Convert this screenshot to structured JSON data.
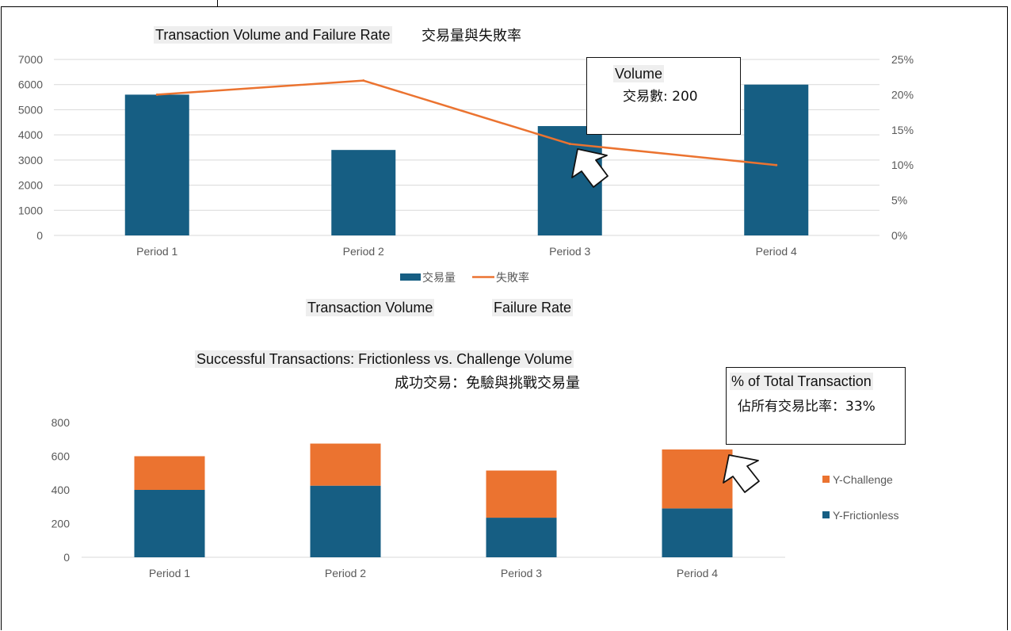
{
  "top_chart": {
    "title_en": "Transaction Volume and Failure Rate",
    "title_zh": "交易量與失敗率",
    "legend_bar_label": "Transaction Volume",
    "legend_line_label": "Failure Rate",
    "callout": {
      "title": "Volume",
      "line": "交易數: 200"
    }
  },
  "bottom_chart": {
    "title_en": "Successful Transactions: Frictionless vs. Challenge Volume",
    "title_zh": "成功交易：免驗與挑戰交易量",
    "callout": {
      "title": "% of Total Transaction",
      "line": "佔所有交易比率：33%"
    }
  },
  "colors": {
    "blue": "#165E83",
    "orange": "#EB7330",
    "grid": "#d9d9d9"
  },
  "chart_data": [
    {
      "type": "bar",
      "categories": [
        "Period 1",
        "Period 2",
        "Period 3",
        "Period 4"
      ],
      "series": [
        {
          "name": "交易量",
          "type": "bar",
          "axis": "left",
          "values": [
            5600,
            3400,
            4350,
            6000
          ]
        },
        {
          "name": "失敗率",
          "type": "line",
          "axis": "right",
          "values": [
            20,
            22,
            13,
            10
          ]
        }
      ],
      "ylim": [
        0,
        7000
      ],
      "yticks": [
        "0",
        "1000",
        "2000",
        "3000",
        "4000",
        "5000",
        "6000",
        "7000"
      ],
      "y2lim": [
        0,
        25
      ],
      "y2ticks": [
        "0%",
        "5%",
        "10%",
        "15%",
        "20%",
        "25%"
      ],
      "legend": "bottom",
      "grid": true
    },
    {
      "type": "bar",
      "stacked": true,
      "categories": [
        "Period 1",
        "Period 2",
        "Period 3",
        "Period 4"
      ],
      "series": [
        {
          "name": "Y-Frictionless",
          "values": [
            400,
            425,
            235,
            290
          ]
        },
        {
          "name": "Y-Challenge",
          "values": [
            200,
            250,
            280,
            350
          ]
        }
      ],
      "ylim": [
        0,
        800
      ],
      "yticks": [
        "0",
        "200",
        "400",
        "600",
        "800"
      ],
      "legend": "right",
      "grid": false
    }
  ]
}
